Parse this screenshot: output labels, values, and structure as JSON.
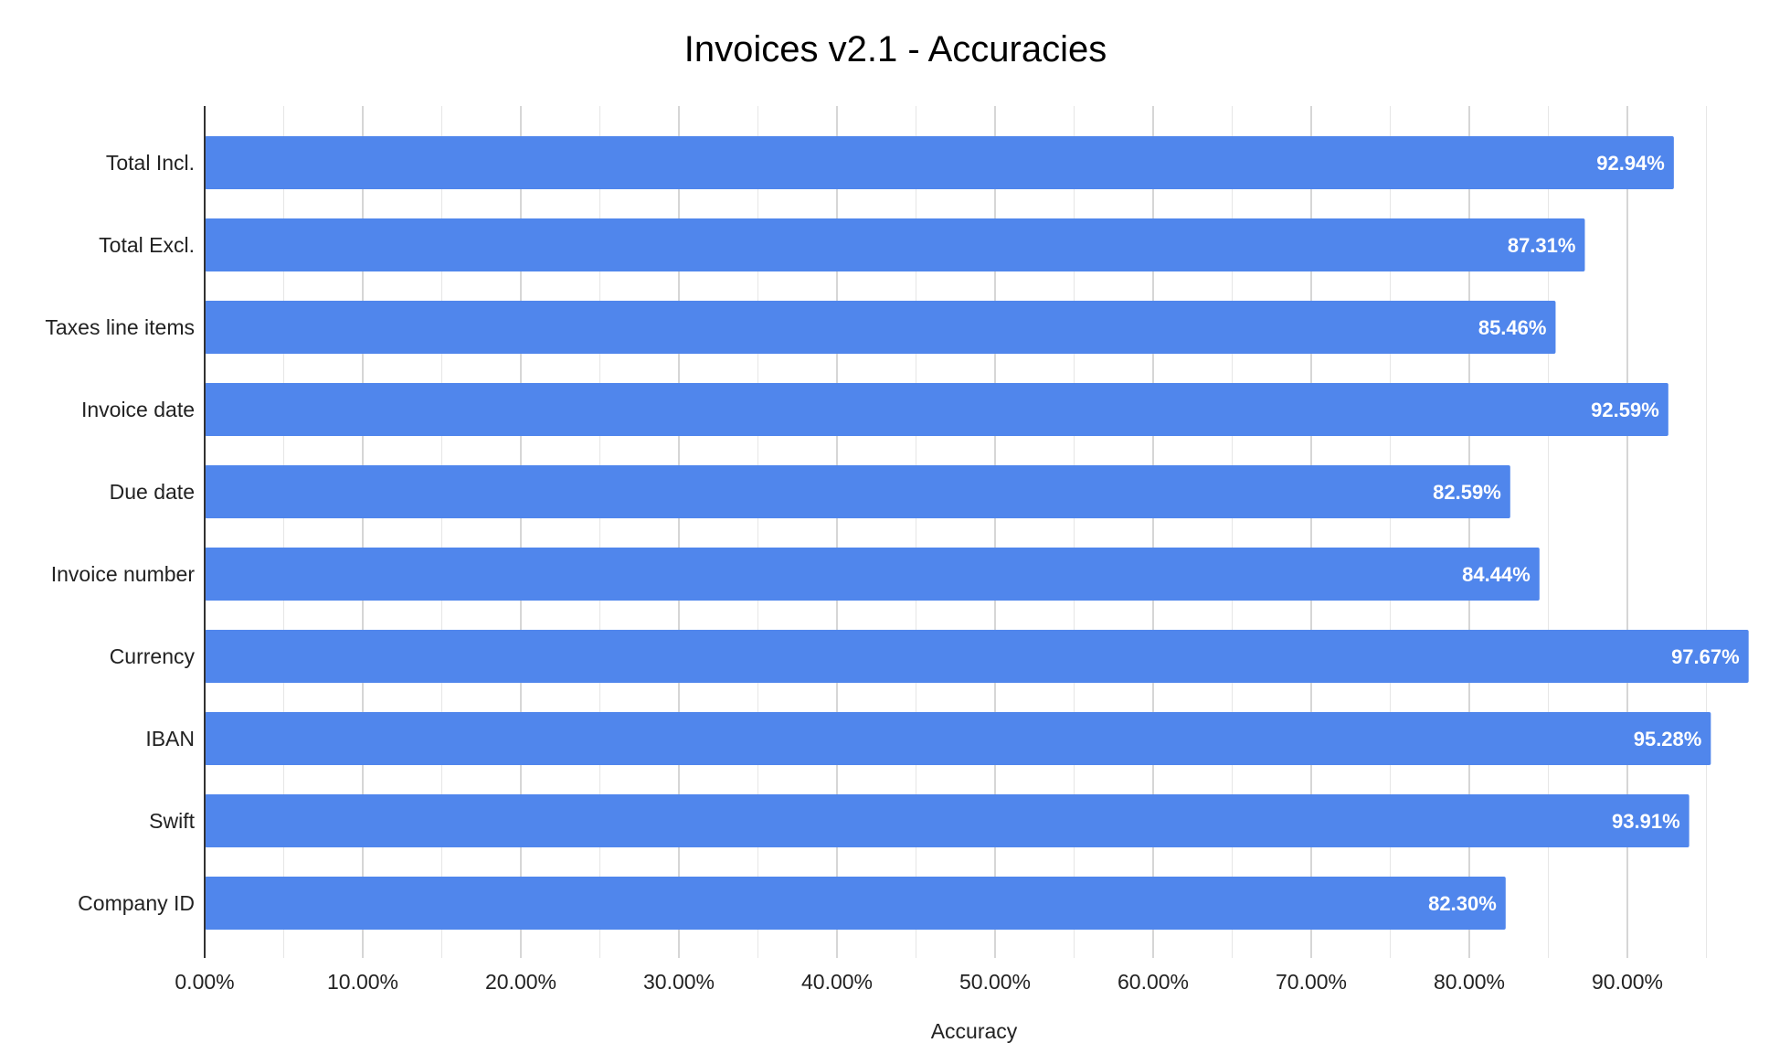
{
  "chart_data": {
    "type": "bar",
    "orientation": "horizontal",
    "title": "Invoices v2.1 - Accuracies",
    "xlabel": "Accuracy",
    "ylabel": "",
    "categories": [
      "Total Incl.",
      "Total Excl.",
      "Taxes line items",
      "Invoice date",
      "Due date",
      "Invoice number",
      "Currency",
      "IBAN",
      "Swift",
      "Company ID"
    ],
    "values": [
      92.94,
      87.31,
      85.46,
      92.59,
      82.59,
      84.44,
      97.67,
      95.28,
      93.91,
      82.3
    ],
    "value_labels": [
      "92.94%",
      "87.31%",
      "85.46%",
      "92.59%",
      "82.59%",
      "84.44%",
      "97.67%",
      "95.28%",
      "93.91%",
      "82.30%"
    ],
    "xticks": [
      0,
      10,
      20,
      30,
      40,
      50,
      60,
      70,
      80,
      90
    ],
    "xtick_labels": [
      "0.00%",
      "10.00%",
      "20.00%",
      "30.00%",
      "40.00%",
      "50.00%",
      "60.00%",
      "70.00%",
      "80.00%",
      "90.00%"
    ],
    "xlim": [
      0,
      97.67
    ],
    "grid": true,
    "legend": "none",
    "bar_color": "#5086ec"
  }
}
